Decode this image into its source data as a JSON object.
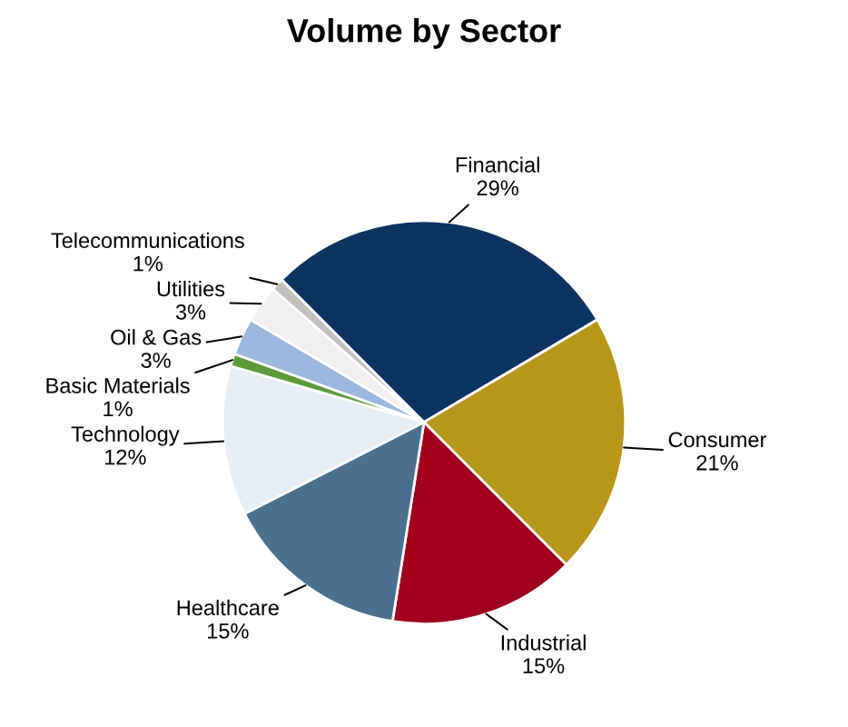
{
  "chart_data": {
    "type": "pie",
    "title": "Volume by Sector",
    "categories": [
      "Financial",
      "Consumer",
      "Industrial",
      "Healthcare",
      "Technology",
      "Basic Materials",
      "Oil & Gas",
      "Utilities",
      "Telecommunications"
    ],
    "values": [
      29,
      21,
      15,
      15,
      12,
      1,
      3,
      3,
      1
    ],
    "value_labels": [
      "29%",
      "21%",
      "15%",
      "15%",
      "12%",
      "1%",
      "3%",
      "3%",
      "1%"
    ],
    "colors": [
      "#0b3461",
      "#b8961a",
      "#a0001e",
      "#4a6f8f",
      "#e6eef8",
      "#5b9a3c",
      "#9ab8e0",
      "#f0f0f0",
      "#c0c0c0"
    ],
    "legend": false
  }
}
